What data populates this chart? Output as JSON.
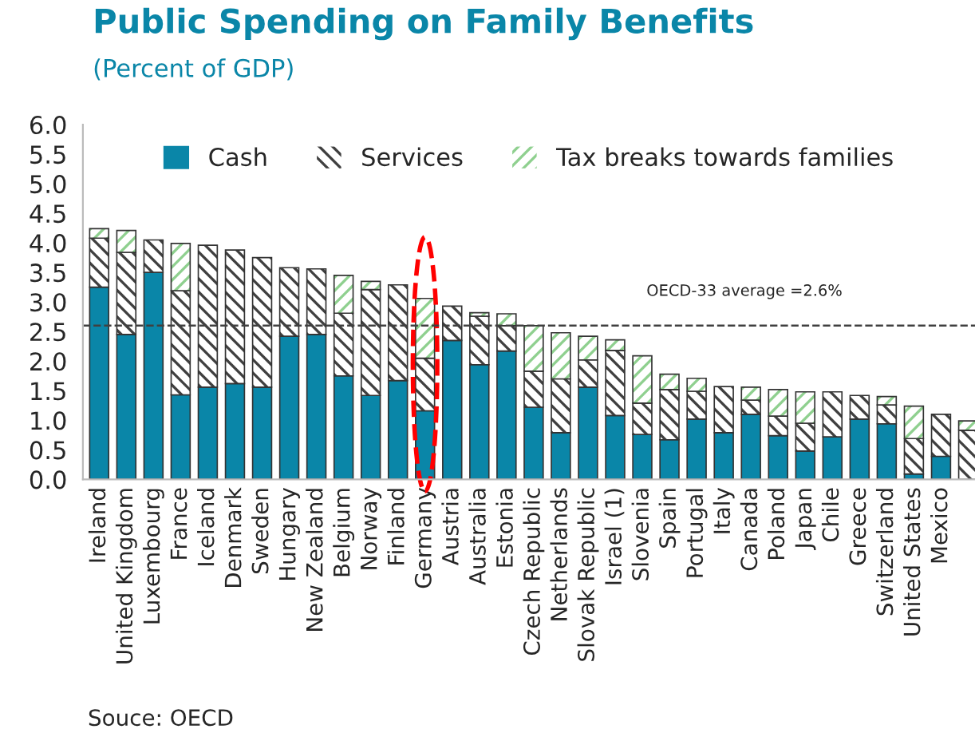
{
  "chart_data": {
    "type": "bar",
    "title": "Public Spending on Family Benefits",
    "subtitle": "(Percent of GDP)",
    "categories": [
      "Ireland",
      "United Kingdom",
      "Luxembourg",
      "France",
      "Iceland",
      "Denmark",
      "Sweden",
      "Hungary",
      "New Zealand",
      "Belgium",
      "Norway",
      "Finland",
      "Germany",
      "Austria",
      "Australia",
      "Estonia",
      "Czech Republic",
      "Netherlands",
      "Slovak Republic",
      "Israel (1)",
      "Slovenia",
      "Spain",
      "Portugal",
      "Italy",
      "Canada",
      "Poland",
      "Japan",
      "Chile",
      "Greece",
      "Switzerland",
      "United States",
      "Mexico",
      null
    ],
    "series": [
      {
        "name": "Cash",
        "color": "#0a86a8",
        "values": [
          3.25,
          2.45,
          3.5,
          1.43,
          1.56,
          1.62,
          1.56,
          2.42,
          2.45,
          1.75,
          1.42,
          1.67,
          1.16,
          2.35,
          1.94,
          2.17,
          1.22,
          0.79,
          1.56,
          1.08,
          0.76,
          0.67,
          1.02,
          0.79,
          1.1,
          0.74,
          0.48,
          0.72,
          1.02,
          0.94,
          0.09,
          0.39,
          0.0
        ]
      },
      {
        "name": "Services",
        "color": "#404040",
        "values": [
          0.83,
          1.39,
          0.55,
          1.76,
          2.4,
          2.26,
          2.19,
          1.16,
          1.11,
          1.06,
          1.79,
          1.62,
          0.89,
          0.58,
          0.82,
          0.43,
          0.61,
          0.91,
          0.46,
          1.1,
          0.53,
          0.85,
          0.47,
          0.78,
          0.24,
          0.33,
          0.47,
          0.76,
          0.4,
          0.32,
          0.6,
          0.71,
          0.83
        ]
      },
      {
        "name": "Tax breaks towards families",
        "color": "#8fd08f",
        "values": [
          0.16,
          0.37,
          0.0,
          0.8,
          0.0,
          0.0,
          0.0,
          0.0,
          0.0,
          0.64,
          0.14,
          0.0,
          1.01,
          0.0,
          0.06,
          0.2,
          0.77,
          0.78,
          0.4,
          0.18,
          0.8,
          0.26,
          0.22,
          0.0,
          0.22,
          0.45,
          0.53,
          0.0,
          0.0,
          0.14,
          0.55,
          0.0,
          0.16
        ]
      }
    ],
    "stacked": true,
    "ylim": [
      0,
      6
    ],
    "yticks": [
      {
        "value": 0,
        "label": "0.0"
      },
      {
        "value": 0.5,
        "label": "0.5"
      },
      {
        "value": 1,
        "label": "1.0"
      },
      {
        "value": 1.5,
        "label": "1.5"
      },
      {
        "value": 2,
        "label": "2.0"
      },
      {
        "value": 2.5,
        "label": "2.5"
      },
      {
        "value": 3,
        "label": "3.0"
      },
      {
        "value": 3.5,
        "label": "3.5"
      },
      {
        "value": 4,
        "label": "4.0"
      },
      {
        "value": 4.5,
        "label": "4.5"
      },
      {
        "value": 5,
        "label": "5.0"
      },
      {
        "value": 5.5,
        "label": "5.5"
      },
      {
        "value": 6,
        "label": "6.0"
      }
    ],
    "ref_lines": [
      {
        "axis": "y",
        "value": 2.6,
        "label": "OECD-33 average =2.6%",
        "color": "#404040",
        "line_style": "dashed"
      }
    ],
    "annotations": [
      "Souce: OECD"
    ],
    "legend": "top",
    "grid": false
  }
}
